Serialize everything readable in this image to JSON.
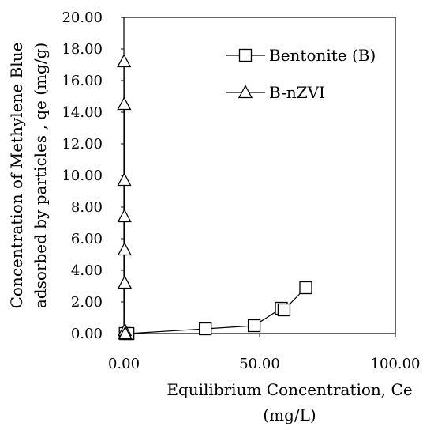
{
  "chart_data": {
    "type": "scatter",
    "xlabel_lines": [
      "Equilibrium Concentration, Ce",
      "(mg/L)"
    ],
    "ylabel_lines": [
      "Concentration of Methylene Blue",
      "adsorbed by particles , qe (mg/g)"
    ],
    "xlim": [
      0,
      100
    ],
    "ylim": [
      0,
      20
    ],
    "x_ticks": [
      "0.00",
      "50.00",
      "100.00"
    ],
    "y_ticks": [
      "0.00",
      "2.00",
      "4.00",
      "6.00",
      "8.00",
      "10.00",
      "12.00",
      "14.00",
      "16.00",
      "18.00",
      "20.00"
    ],
    "grid": false,
    "legend_position": "top-right",
    "series": [
      {
        "name": "Bentonite (B)",
        "marker": "square",
        "x": [
          0.5,
          1.5,
          30.0,
          48.0,
          58.0,
          59.0,
          67.0
        ],
        "y": [
          0.0,
          0.0,
          0.3,
          0.5,
          1.6,
          1.5,
          2.9
        ]
      },
      {
        "name": "B-nZVI",
        "marker": "triangle",
        "x": [
          0.05,
          0.1,
          0.15,
          0.2,
          0.25,
          0.3,
          0.35,
          0.5
        ],
        "y": [
          17.2,
          14.5,
          9.7,
          7.4,
          5.3,
          3.2,
          0.2,
          0.0
        ]
      }
    ]
  }
}
